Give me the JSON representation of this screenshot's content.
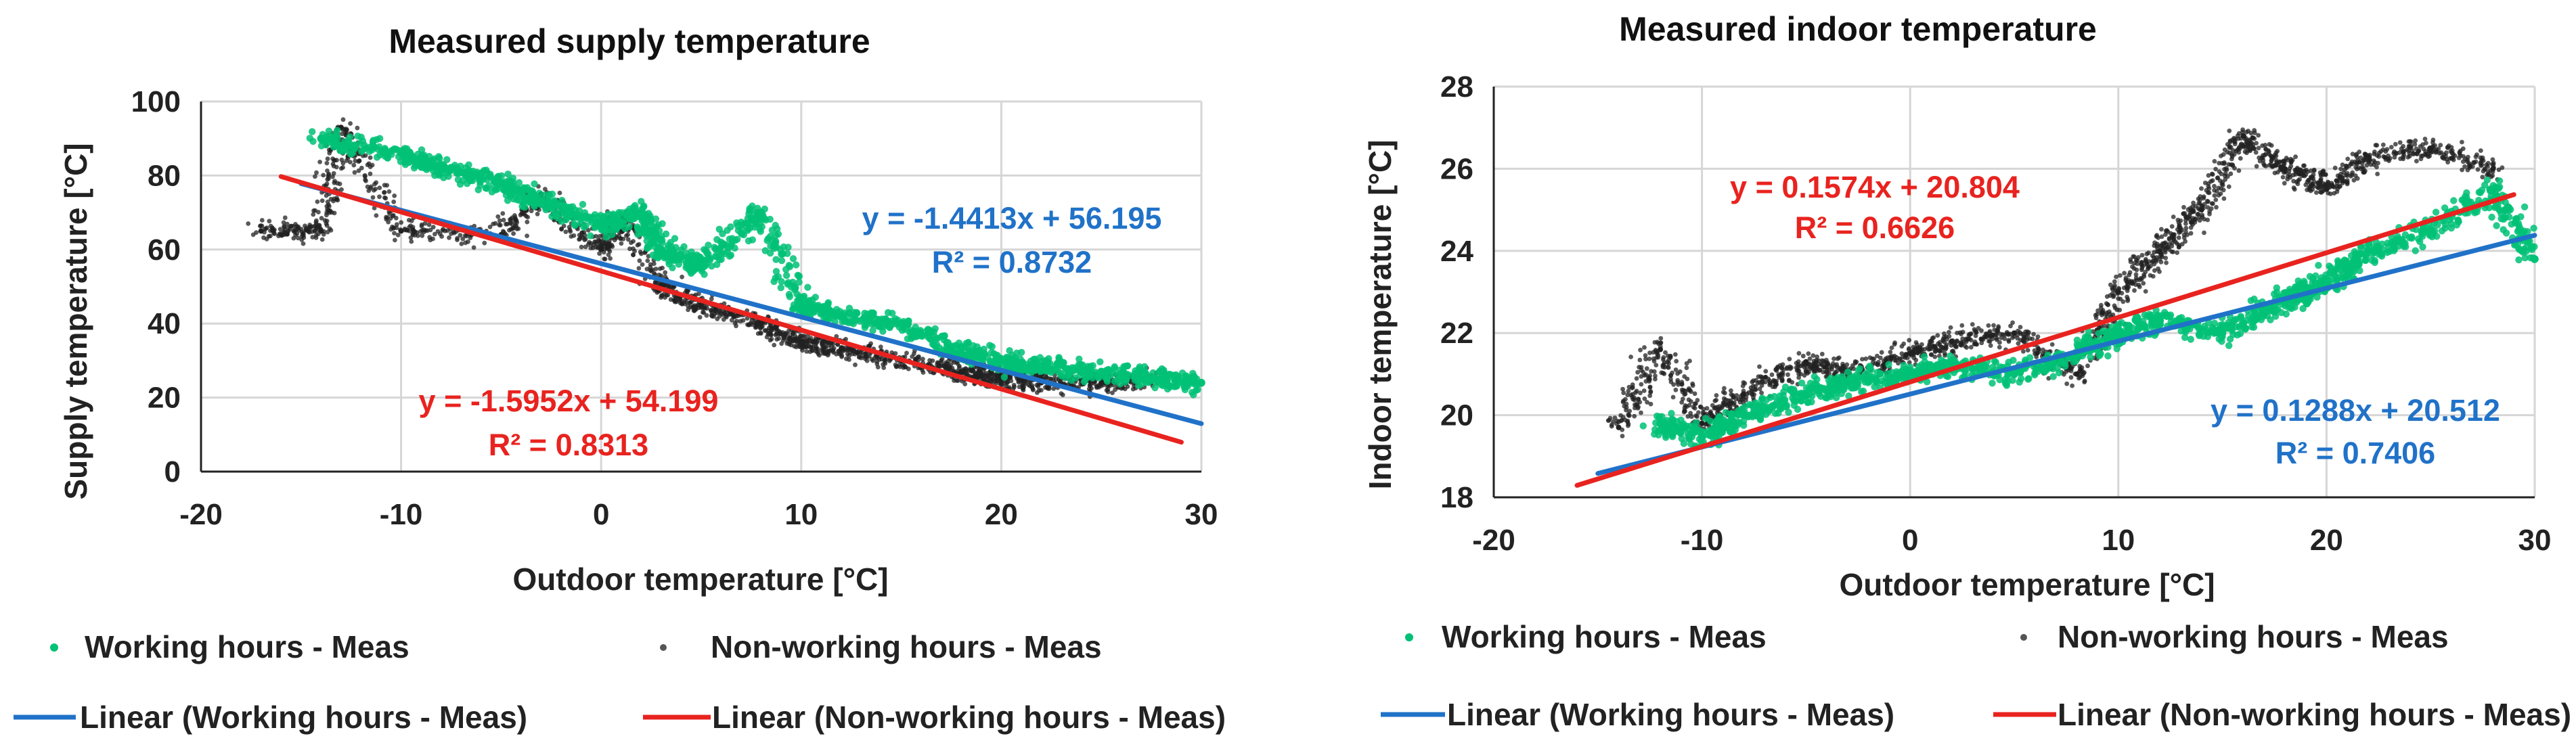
{
  "chart_data": [
    {
      "type": "scatter",
      "title": "Measured supply temperature",
      "xlabel": "Outdoor temperature [°C]",
      "ylabel": "Supply temperature [°C]",
      "xlim": [
        -20,
        30
      ],
      "ylim": [
        0,
        100
      ],
      "xticks": [
        "-20",
        "-10",
        "0",
        "10",
        "20",
        "30"
      ],
      "yticks": [
        "0",
        "20",
        "40",
        "60",
        "80",
        "100"
      ],
      "grid": true,
      "legend_position": "bottom",
      "series": [
        {
          "name": "Working hours - Meas",
          "kind": "points",
          "color": "#00c176",
          "marker": "circle",
          "x": [
            -14,
            -10,
            -8,
            -5,
            -3,
            0,
            2,
            3,
            5,
            8,
            10,
            12,
            15,
            18,
            20,
            22,
            25,
            28,
            30
          ],
          "y": [
            90,
            86,
            82,
            78,
            73,
            66,
            70,
            60,
            55,
            70,
            45,
            42,
            40,
            32,
            30,
            28,
            27,
            25,
            24
          ]
        },
        {
          "name": "Non-working hours - Meas",
          "kind": "points",
          "color": "#222222",
          "marker": "circle",
          "x": [
            -17,
            -14,
            -13,
            -10,
            -5,
            -3,
            0,
            1,
            3,
            5,
            8,
            10,
            12,
            15,
            18,
            20,
            22,
            25,
            28
          ],
          "y": [
            65,
            65,
            93,
            65,
            64,
            75,
            60,
            68,
            50,
            45,
            40,
            35,
            33,
            30,
            27,
            25,
            24,
            24,
            25
          ]
        },
        {
          "name": "Linear (Working hours - Meas)",
          "kind": "line",
          "color": "#2072c8",
          "x": [
            -15,
            30
          ],
          "y": [
            77.81,
            12.96
          ]
        },
        {
          "name": "Linear (Non-working hours - Meas)",
          "kind": "line",
          "color": "#e8231f",
          "x": [
            -16,
            29
          ],
          "y": [
            79.72,
            7.94
          ]
        }
      ],
      "annotations": [
        {
          "line1": "y = -1.4413x + 56.195",
          "line2": "R² = 0.8732",
          "color": "#2072c8"
        },
        {
          "line1": "y = -1.5952x + 54.199",
          "line2": "R² = 0.8313",
          "color": "#e8231f"
        }
      ]
    },
    {
      "type": "scatter",
      "title": "Measured indoor temperature",
      "xlabel": "Outdoor temperature [°C]",
      "ylabel": "Indoor temperature [°C]",
      "xlim": [
        -20,
        30
      ],
      "ylim": [
        18,
        28
      ],
      "xticks": [
        "-20",
        "-10",
        "0",
        "10",
        "20",
        "30"
      ],
      "yticks": [
        "18",
        "20",
        "22",
        "24",
        "26",
        "28"
      ],
      "grid": true,
      "legend_position": "bottom",
      "series": [
        {
          "name": "Working hours - Meas",
          "kind": "points",
          "color": "#00c176",
          "marker": "circle",
          "x": [
            -12,
            -10,
            -8,
            -5,
            -3,
            0,
            2,
            5,
            8,
            10,
            12,
            15,
            18,
            20,
            22,
            25,
            28,
            30
          ],
          "y": [
            19.8,
            19.5,
            20.0,
            20.5,
            20.8,
            21.0,
            21.2,
            21.0,
            21.5,
            22.0,
            22.3,
            22.0,
            22.8,
            23.2,
            24.0,
            24.5,
            25.5,
            23.8
          ]
        },
        {
          "name": "Non-working hours - Meas",
          "kind": "points",
          "color": "#222222",
          "marker": "circle",
          "x": [
            -14,
            -12,
            -10,
            -8,
            -5,
            -3,
            0,
            2,
            5,
            8,
            10,
            12,
            14,
            16,
            18,
            20,
            22,
            25,
            28
          ],
          "y": [
            19.7,
            21.6,
            19.8,
            20.5,
            21.3,
            21.0,
            21.5,
            21.8,
            22.0,
            21.0,
            23.0,
            24.0,
            25.0,
            26.8,
            26.0,
            25.5,
            26.3,
            26.5,
            26.0
          ]
        },
        {
          "name": "Linear (Working hours - Meas)",
          "kind": "line",
          "color": "#2072c8",
          "x": [
            -15,
            30
          ],
          "y": [
            18.58,
            24.38
          ]
        },
        {
          "name": "Linear (Non-working hours - Meas)",
          "kind": "line",
          "color": "#e8231f",
          "x": [
            -16,
            29
          ],
          "y": [
            18.29,
            25.37
          ]
        }
      ],
      "annotations": [
        {
          "line1": "y = 0.1574x + 20.804",
          "line2": "R² = 0.6626",
          "color": "#e8231f"
        },
        {
          "line1": "y = 0.1288x + 20.512",
          "line2": "R² = 0.7406",
          "color": "#2072c8"
        }
      ]
    }
  ]
}
